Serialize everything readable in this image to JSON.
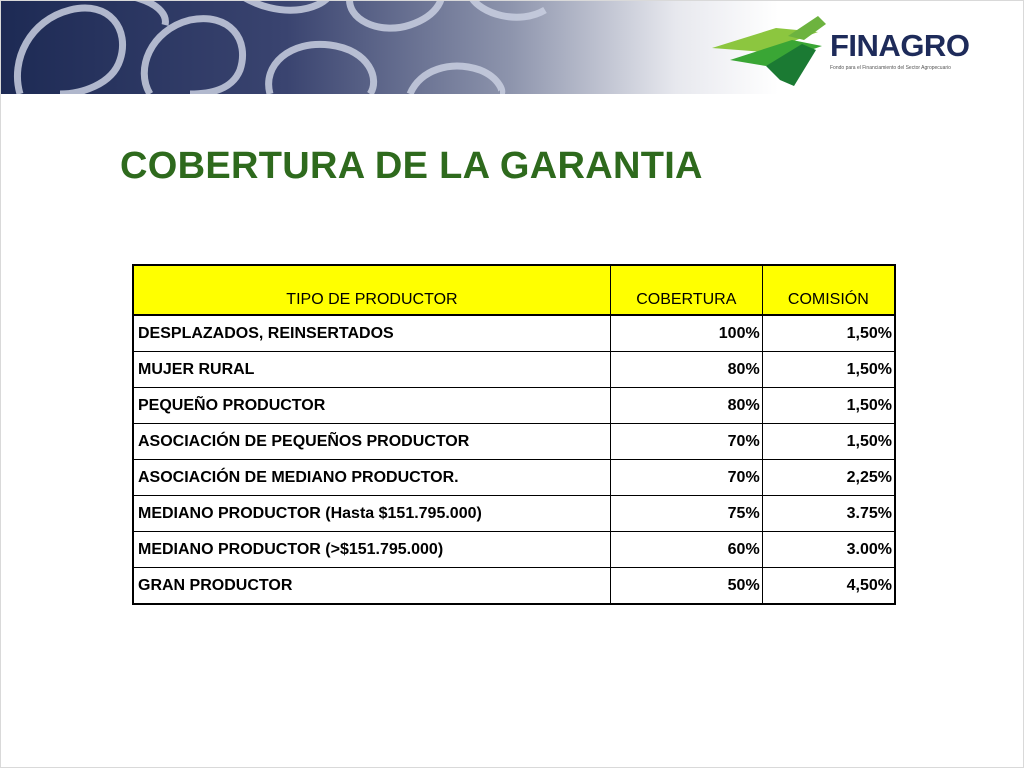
{
  "header": {
    "logo_text": "FINAGRO",
    "logo_tagline": "Fondo para el Financiamiento del Sector Agropecuario"
  },
  "slide": {
    "title": "COBERTURA DE LA GARANTIA"
  },
  "table": {
    "headers": [
      "TIPO DE PRODUCTOR",
      "COBERTURA",
      "COMISIÓN"
    ],
    "rows": [
      {
        "tipo": "DESPLAZADOS, REINSERTADOS",
        "cobertura": "100%",
        "comision": "1,50%"
      },
      {
        "tipo": "MUJER RURAL",
        "cobertura": "80%",
        "comision": "1,50%"
      },
      {
        "tipo": "PEQUEÑO PRODUCTOR",
        "cobertura": "80%",
        "comision": "1,50%"
      },
      {
        "tipo": "ASOCIACIÓN DE PEQUEÑOS PRODUCTOR",
        "cobertura": "70%",
        "comision": "1,50%"
      },
      {
        "tipo": "ASOCIACIÓN DE MEDIANO PRODUCTOR.",
        "cobertura": "70%",
        "comision": "2,25%"
      },
      {
        "tipo": "MEDIANO PRODUCTOR (Hasta $151.795.000)",
        "cobertura": "75%",
        "comision": "3.75%"
      },
      {
        "tipo": "MEDIANO PRODUCTOR (>$151.795.000)",
        "cobertura": "60%",
        "comision": "3.00%"
      },
      {
        "tipo": "GRAN PRODUCTOR",
        "cobertura": "50%",
        "comision": "4,50%"
      }
    ]
  },
  "colors": {
    "title_green": "#2e6a1d",
    "header_yellow": "#ffff00",
    "logo_navy": "#1e2b5a",
    "banner_navy": "#1d2a54"
  }
}
